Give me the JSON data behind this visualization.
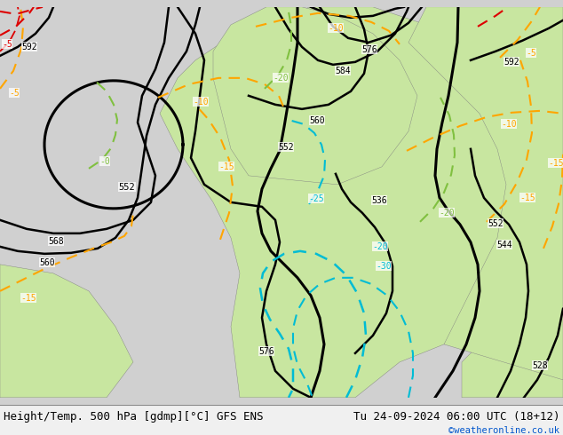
{
  "title_left": "Height/Temp. 500 hPa [gdmp][°C] GFS ENS",
  "title_right": "Tu 24-09-2024 06:00 UTC (18+12)",
  "credit": "©weatheronline.co.uk",
  "bg_color": "#d0d0d0",
  "land_color_light": "#c8e6a0",
  "ocean_color": "#d8d8d8",
  "color_black": "#000000",
  "color_orange": "#ffa500",
  "color_cyan": "#00bcd4",
  "color_green": "#80c040",
  "color_red": "#dd0000",
  "color_gray": "#888888",
  "bottom_bar_color": "#f0f0f0",
  "credit_color": "#0055cc",
  "figsize": [
    6.34,
    4.9
  ],
  "dpi": 100,
  "font_family": "monospace"
}
